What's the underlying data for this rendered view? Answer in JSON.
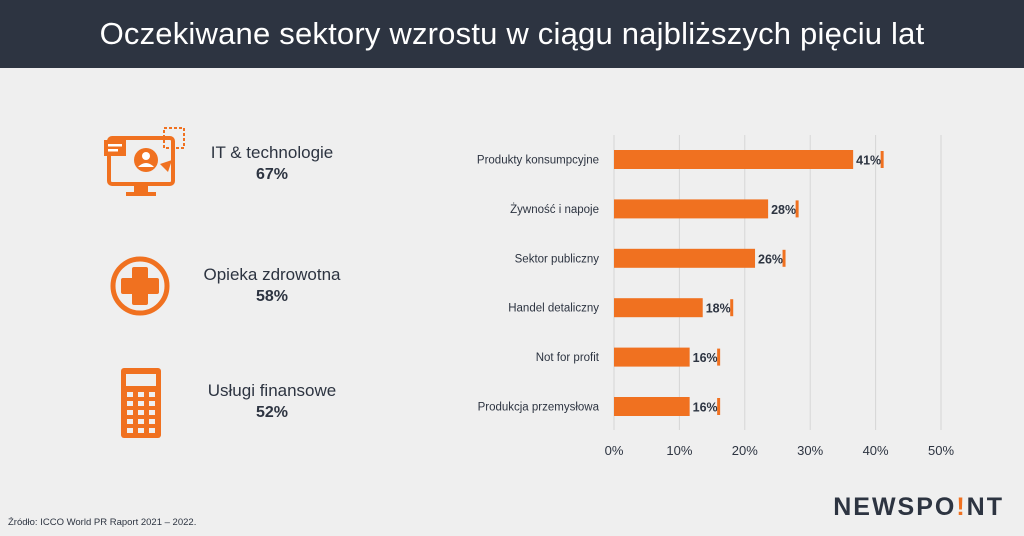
{
  "header": {
    "title": "Oczekiwane sektory wzrostu w ciągu najbliższych pięciu lat"
  },
  "stats": [
    {
      "label": "IT & technologie",
      "value": "67%",
      "icon": "monitor-user-icon"
    },
    {
      "label": "Opieka zdrowotna",
      "value": "58%",
      "icon": "medical-cross-icon"
    },
    {
      "label": "Usługi finansowe",
      "value": "52%",
      "icon": "calculator-icon"
    }
  ],
  "colors": {
    "accent": "#f07120",
    "dark": "#2d3441",
    "background": "#efefef",
    "grid": "#d6d6d6"
  },
  "chart_data": {
    "type": "bar",
    "orientation": "horizontal",
    "categories": [
      "Produkty konsumpcyjne",
      "Żywność i napoje",
      "Sektor publiczny",
      "Handel detaliczny",
      "Not for profit",
      "Produkcja przemysłowa"
    ],
    "values": [
      41,
      28,
      26,
      18,
      16,
      16
    ],
    "value_labels": [
      "41%",
      "28%",
      "26%",
      "18%",
      "16%",
      "16%"
    ],
    "x_ticks": [
      "0%",
      "10%",
      "20%",
      "30%",
      "40%",
      "50%"
    ],
    "xlim": [
      0,
      50
    ],
    "grid": true
  },
  "footer": {
    "source": "Źródło: ICCO World PR Raport 2021 – 2022.",
    "brand_left": "NEWSPO",
    "brand_accent": "!",
    "brand_right": "NT"
  }
}
